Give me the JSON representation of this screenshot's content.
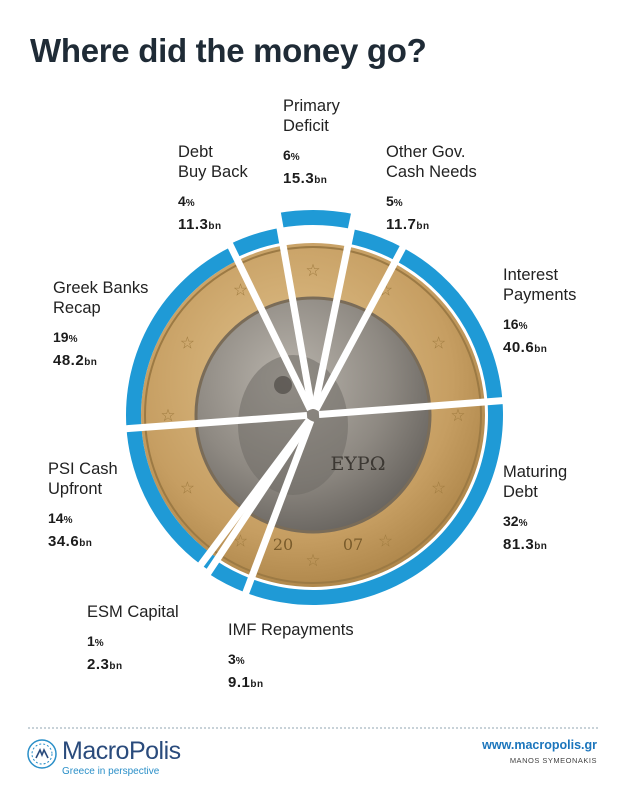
{
  "title": "Where did the money go?",
  "chart_data": {
    "type": "pie",
    "title": "Where did the money go?",
    "unit": "bn",
    "colors": {
      "ring": "#1f9ad6",
      "coin_gold": "#c9a56a",
      "coin_silver": "#8f8b86"
    },
    "slices": [
      {
        "name": "Primary Deficit",
        "lines": [
          "Primary",
          "Deficit"
        ],
        "percent": 6,
        "percent_label": "6",
        "percent_unit": "%",
        "value": 15.3,
        "value_label": "15.3",
        "value_unit": "bn"
      },
      {
        "name": "Other Gov. Cash Needs",
        "lines": [
          "Other Gov.",
          "Cash Needs"
        ],
        "percent": 5,
        "percent_label": "5",
        "percent_unit": "%",
        "value": 11.7,
        "value_label": "11.7",
        "value_unit": "bn"
      },
      {
        "name": "Interest Payments",
        "lines": [
          "Interest",
          "Payments"
        ],
        "percent": 16,
        "percent_label": "16",
        "percent_unit": "%",
        "value": 40.6,
        "value_label": "40.6",
        "value_unit": "bn"
      },
      {
        "name": "Maturing Debt",
        "lines": [
          "Maturing",
          "Debt"
        ],
        "percent": 32,
        "percent_label": "32",
        "percent_unit": "%",
        "value": 81.3,
        "value_label": "81.3",
        "value_unit": "bn"
      },
      {
        "name": "IMF Repayments",
        "lines": [
          "IMF Repayments"
        ],
        "percent": 3,
        "percent_label": "3",
        "percent_unit": "%",
        "value": 9.1,
        "value_label": "9.1",
        "value_unit": "bn"
      },
      {
        "name": "ESM Capital",
        "lines": [
          "ESM Capital"
        ],
        "percent": 1,
        "percent_label": "1",
        "percent_unit": "%",
        "value": 2.3,
        "value_label": "2.3",
        "value_unit": "bn"
      },
      {
        "name": "PSI Cash Upfront",
        "lines": [
          "PSI Cash",
          "Upfront"
        ],
        "percent": 14,
        "percent_label": "14",
        "percent_unit": "%",
        "value": 34.6,
        "value_label": "34.6",
        "value_unit": "bn"
      },
      {
        "name": "Greek Banks Recap",
        "lines": [
          "Greek Banks",
          "Recap"
        ],
        "percent": 19,
        "percent_label": "19",
        "percent_unit": "%",
        "value": 48.2,
        "value_label": "48.2",
        "value_unit": "bn"
      },
      {
        "name": "Debt Buy Back",
        "lines": [
          "Debt",
          "Buy Back"
        ],
        "percent": 4,
        "percent_label": "4",
        "percent_unit": "%",
        "value": 11.3,
        "value_label": "11.3",
        "value_unit": "bn"
      }
    ],
    "coin_text": "ΕΥΡΩ",
    "coin_year_left": "20",
    "coin_year_right": "07"
  },
  "footer": {
    "brand": "MacroPolis",
    "tagline": "Greece in perspective",
    "url": "www.macropolis.gr",
    "credit": "MANOS SYMEONAKIS"
  }
}
